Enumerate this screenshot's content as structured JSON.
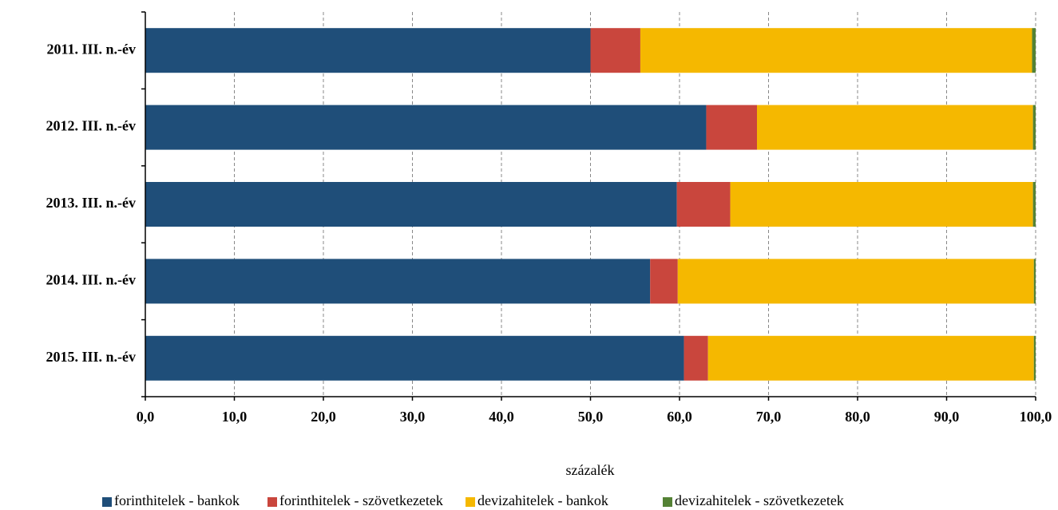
{
  "chart_data": {
    "type": "stacked_barh",
    "categories": [
      "2011. III. n.-év",
      "2012. III. n.-év",
      "2013. III. n.-év",
      "2014. III. n.-év",
      "2015. III. n.-év"
    ],
    "series": [
      {
        "name": "forinthitelek - bankok",
        "color": "#1f4e79",
        "values": [
          50.0,
          63.0,
          59.7,
          56.7,
          60.5
        ]
      },
      {
        "name": "forinthitelek - szövetkezetek",
        "color": "#c9463d",
        "values": [
          5.6,
          5.7,
          6.0,
          3.1,
          2.7
        ]
      },
      {
        "name": "devizahitelek - bankok",
        "color": "#f5b800",
        "values": [
          44.0,
          31.0,
          34.0,
          40.0,
          36.6
        ]
      },
      {
        "name": "devizahitelek - szövetkezetek",
        "color": "#548235",
        "values": [
          0.4,
          0.3,
          0.3,
          0.2,
          0.2
        ]
      }
    ],
    "xlabel": "százalék",
    "xlim": [
      0,
      100
    ],
    "xticks": [
      {
        "value": 0,
        "label": "0,0"
      },
      {
        "value": 10,
        "label": "10,0"
      },
      {
        "value": 20,
        "label": "20,0"
      },
      {
        "value": 30,
        "label": "30,0"
      },
      {
        "value": 40,
        "label": "40,0"
      },
      {
        "value": 50,
        "label": "50,0"
      },
      {
        "value": 60,
        "label": "60,0"
      },
      {
        "value": 70,
        "label": "70,0"
      },
      {
        "value": 80,
        "label": "80,0"
      },
      {
        "value": 90,
        "label": "90,0"
      },
      {
        "value": 100,
        "label": "100,0"
      }
    ],
    "grid": true,
    "legend": "bottom"
  }
}
